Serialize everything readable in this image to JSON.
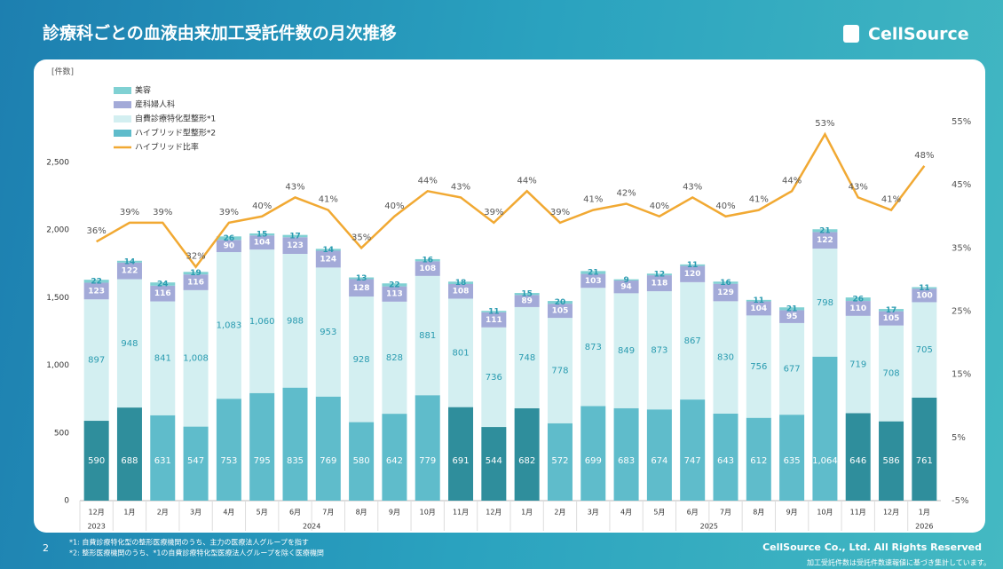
{
  "title": "診療科ごとの血液由来加工受託件数の月次推移",
  "logo": "CellSource",
  "page_number": "2",
  "footnotes": [
    "*1: 自費診療特化型の整形医療機関のうち、主力の医療法人グループを指す",
    "*2: 整形医療機関のうち、*1の自費診療特化型医療法人グループを除く医療機関"
  ],
  "copyright": "CellSource Co., Ltd. All Rights Reserved",
  "note": "加工受託件数は受託件数速報値に基づき集計しています。",
  "chart_data": {
    "type": "stacked_bar_line",
    "y_label": "[件数]",
    "categories": [
      "12月",
      "1月",
      "2月",
      "3月",
      "4月",
      "5月",
      "6月",
      "7月",
      "8月",
      "9月",
      "10月",
      "11月",
      "12月",
      "1月",
      "2月",
      "3月",
      "4月",
      "5月",
      "6月",
      "7月",
      "8月",
      "9月",
      "10月",
      "11月",
      "12月",
      "1月"
    ],
    "category_groups": [
      {
        "label": "2023",
        "span": 1
      },
      {
        "label": "2024",
        "span": 12
      },
      {
        "label": "2025",
        "span": 12
      },
      {
        "label": "2026",
        "span": 1
      }
    ],
    "series": [
      {
        "name": "ハイブリッド型整形*2",
        "color": "#5fbccb",
        "point_colors": [
          "#2f8e9c",
          "#2f8e9c",
          "#5fbccb",
          "#5fbccb",
          "#5fbccb",
          "#5fbccb",
          "#5fbccb",
          "#5fbccb",
          "#5fbccb",
          "#5fbccb",
          "#5fbccb",
          "#2f8e9c",
          "#2f8e9c",
          "#2f8e9c",
          "#5fbccb",
          "#5fbccb",
          "#5fbccb",
          "#5fbccb",
          "#5fbccb",
          "#5fbccb",
          "#5fbccb",
          "#5fbccb",
          "#5fbccb",
          "#2f8e9c",
          "#2f8e9c",
          "#2f8e9c"
        ],
        "label_color": "#ffffff",
        "values": [
          590,
          688,
          631,
          547,
          753,
          795,
          835,
          769,
          580,
          642,
          779,
          691,
          544,
          682,
          572,
          699,
          683,
          674,
          747,
          643,
          612,
          635,
          1064,
          646,
          586,
          761
        ],
        "value_labels": [
          "590",
          "688",
          "631",
          "547",
          "753",
          "795",
          "835",
          "769",
          "580",
          "642",
          "779",
          "691",
          "544",
          "682",
          "572",
          "699",
          "683",
          "674",
          "747",
          "643",
          "612",
          "635",
          "1,064",
          "646",
          "586",
          "761"
        ]
      },
      {
        "name": "自費診療特化型整形*1",
        "color": "#d3eff1",
        "label_color": "#2a9bb0",
        "values": [
          897,
          948,
          841,
          1008,
          1083,
          1060,
          988,
          953,
          928,
          828,
          881,
          801,
          736,
          748,
          778,
          873,
          849,
          873,
          867,
          830,
          756,
          677,
          798,
          719,
          708,
          705
        ],
        "value_labels": [
          "897",
          "948",
          "841",
          "1,008",
          "1,083",
          "1,060",
          "988",
          "953",
          "928",
          "828",
          "881",
          "801",
          "736",
          "748",
          "778",
          "873",
          "849",
          "873",
          "867",
          "830",
          "756",
          "677",
          "798",
          "719",
          "708",
          "705"
        ]
      },
      {
        "name": "産科婦人科",
        "color": "#a3aad8",
        "label_color": "#ffffff",
        "values": [
          123,
          122,
          116,
          116,
          90,
          104,
          123,
          124,
          128,
          113,
          108,
          108,
          111,
          89,
          105,
          103,
          94,
          118,
          120,
          129,
          104,
          95,
          122,
          110,
          105,
          100
        ]
      },
      {
        "name": "美容",
        "color": "#80d1d3",
        "label_color": "#2a9bb0",
        "values": [
          22,
          14,
          24,
          19,
          26,
          15,
          17,
          14,
          13,
          22,
          16,
          18,
          11,
          15,
          20,
          21,
          9,
          12,
          11,
          16,
          11,
          21,
          21,
          26,
          17,
          11
        ]
      },
      {
        "name": "ハイブリッド比率",
        "type": "line",
        "axis": "y2",
        "color": "#f1a933",
        "values": [
          36,
          39,
          39,
          32,
          39,
          40,
          43,
          41,
          35,
          40,
          44,
          43,
          39,
          44,
          39,
          41,
          42,
          40,
          43,
          40,
          41,
          44,
          53,
          43,
          41,
          48
        ],
        "value_labels": [
          "36%",
          "39%",
          "39%",
          "32%",
          "39%",
          "40%",
          "43%",
          "41%",
          "35%",
          "40%",
          "44%",
          "43%",
          "39%",
          "44%",
          "39%",
          "41%",
          "42%",
          "40%",
          "43%",
          "40%",
          "41%",
          "44%",
          "53%",
          "43%",
          "41%",
          "48%"
        ]
      }
    ],
    "legend_order": [
      3,
      2,
      1,
      0,
      4
    ],
    "ylim": [
      0,
      2800
    ],
    "yticks": [
      0,
      500,
      {
        "value": 1000,
        "label": "1,000"
      },
      {
        "value": 1500,
        "label": "1,500"
      },
      {
        "value": 2000,
        "label": "2,000"
      },
      {
        "value": 2500,
        "label": "2,500"
      }
    ],
    "y2lim": [
      -5,
      55
    ],
    "y2ticks": [
      {
        "value": -5,
        "label": "-5%"
      },
      {
        "value": 5,
        "label": "5%"
      },
      {
        "value": 15,
        "label": "15%"
      },
      {
        "value": 25,
        "label": "25%"
      },
      {
        "value": 35,
        "label": "35%"
      },
      {
        "value": 45,
        "label": "45%"
      },
      {
        "value": 55,
        "label": "55%"
      }
    ]
  }
}
